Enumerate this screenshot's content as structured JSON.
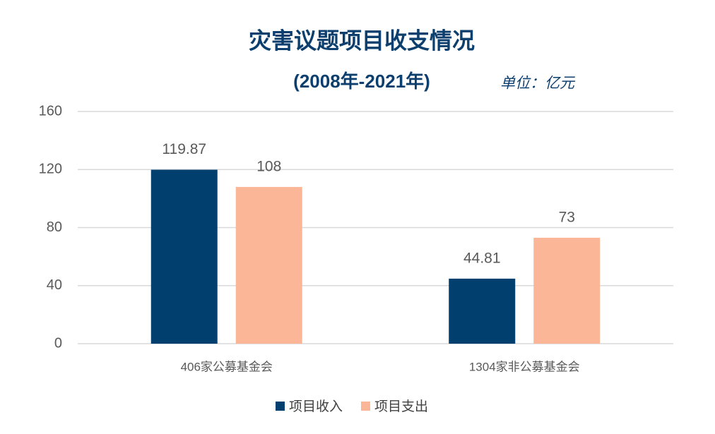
{
  "chart_data": {
    "type": "bar",
    "title": "灾害议题项目收支情况",
    "subtitle": "(2008年-2021年)",
    "unit": "单位：亿元",
    "categories": [
      "406家公募基金会",
      "1304家非公募基金会"
    ],
    "series": [
      {
        "name": "项目收入",
        "color": "#003f6e",
        "values": [
          119.87,
          44.81
        ]
      },
      {
        "name": "项目支出",
        "color": "#fbb597",
        "values": [
          108,
          73
        ]
      }
    ],
    "ylim": [
      0,
      160
    ],
    "yticks": [
      0,
      40,
      80,
      120,
      160
    ],
    "grid": true,
    "legend": "bottom"
  }
}
